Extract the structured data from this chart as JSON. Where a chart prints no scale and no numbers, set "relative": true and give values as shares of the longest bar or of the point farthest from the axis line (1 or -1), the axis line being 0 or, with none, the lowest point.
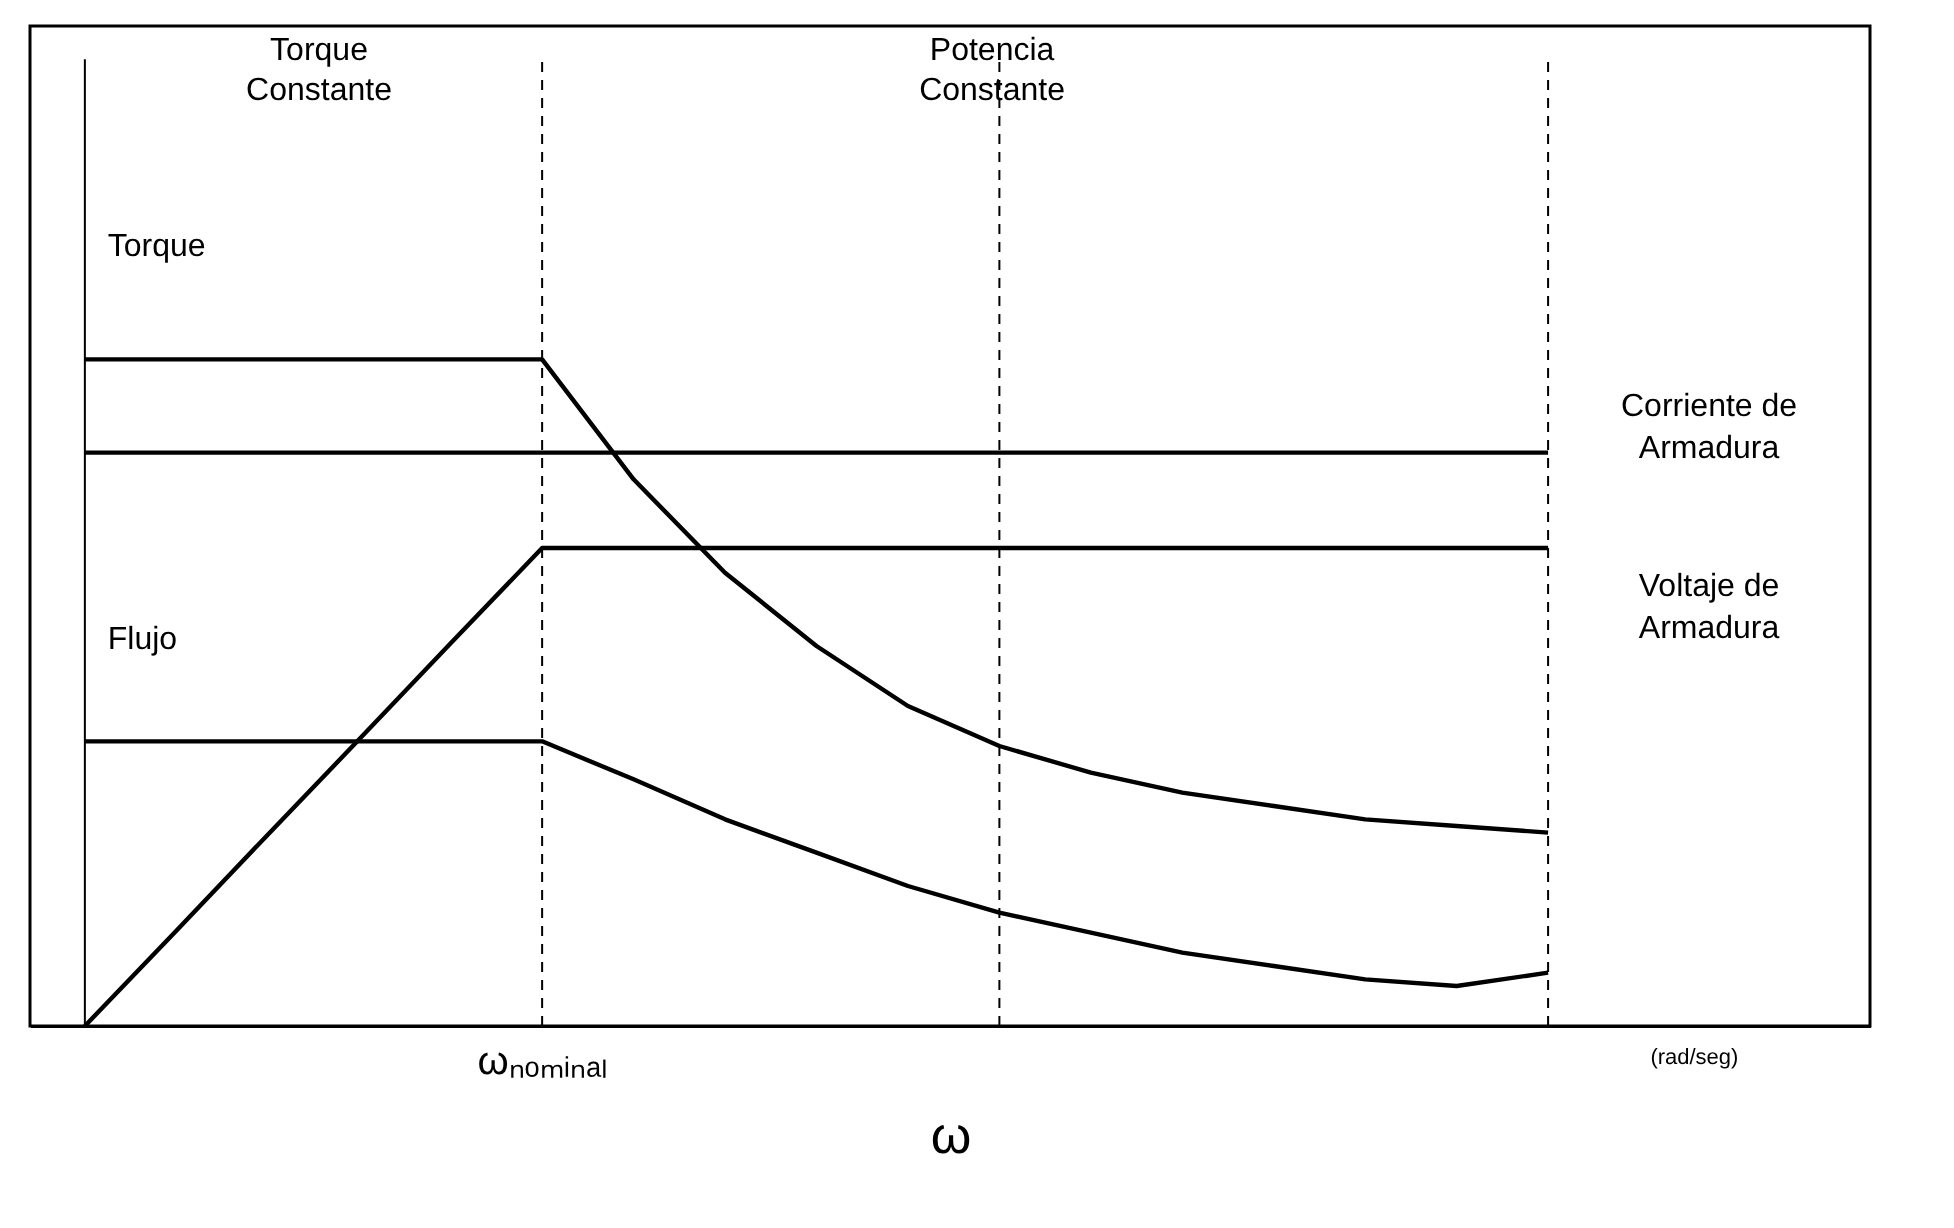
{
  "chart_data": {
    "type": "line",
    "relative": true,
    "xlabel": "ω",
    "legend": false,
    "marker": "none",
    "line_style": "solid",
    "categories": [
      null,
      null,
      null,
      null,
      null,
      null,
      null,
      null,
      null,
      null,
      null,
      null,
      null,
      null,
      null,
      null,
      null
    ],
    "annotations": [
      "Torque Constante",
      "Potencia Constante",
      "(rad/seg)",
      "ωₙₒₘᵢₙₐₗ"
    ],
    "series": [
      {
        "name": "Torque",
        "color": "#000000",
        "values": [
          1,
          1,
          1,
          1,
          1,
          1,
          0.82,
          0.68,
          0.57,
          0.48,
          0.42,
          0.38,
          0.35,
          0.33,
          0.31,
          0.3,
          0.29
        ]
      },
      {
        "name": "Corriente de Armadura",
        "color": "#000000",
        "values": [
          0.86,
          0.86,
          0.86,
          0.86,
          0.86,
          0.86,
          0.86,
          0.86,
          0.86,
          0.86,
          0.86,
          0.86,
          0.86,
          0.86,
          0.86,
          0.86,
          0.86
        ]
      },
      {
        "name": "Voltaje de Armadura",
        "color": "#000000",
        "values": [
          0,
          0.143,
          0.287,
          0.43,
          0.574,
          0.717,
          0.717,
          0.717,
          0.717,
          0.717,
          0.717,
          0.717,
          0.717,
          0.717,
          0.717,
          0.717,
          0.717
        ]
      },
      {
        "name": "Flujo",
        "color": "#000000",
        "values": [
          0.427,
          0.427,
          0.427,
          0.427,
          0.427,
          0.427,
          0.37,
          0.31,
          0.26,
          0.21,
          0.17,
          0.14,
          0.11,
          0.09,
          0.07,
          0.06,
          0.08
        ]
      }
    ]
  }
}
